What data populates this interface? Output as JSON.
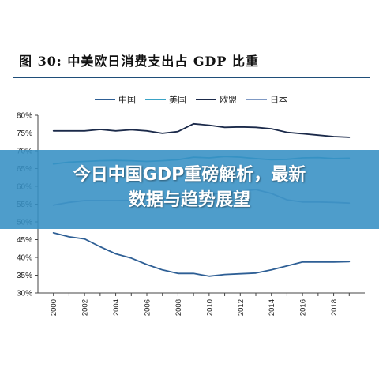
{
  "figure": {
    "title": "图 30: 中美欧日消费支出占 GDP 比重"
  },
  "overlay": {
    "line1": "今日中国GDP重磅解析，最新",
    "line2": "数据与趋势展望"
  },
  "colors": {
    "china": "#2e5f95",
    "usa": "#3aa3c6",
    "eu": "#1b2a4a",
    "japan": "#7f99c4",
    "axis": "#444444",
    "banner": "#368fc4",
    "title_rule": "#1f4e79"
  },
  "chart_data": {
    "type": "line",
    "x": [
      2000,
      2001,
      2002,
      2003,
      2004,
      2005,
      2006,
      2007,
      2008,
      2009,
      2010,
      2011,
      2012,
      2013,
      2014,
      2015,
      2016,
      2017,
      2018,
      2019
    ],
    "xticks": [
      "2000",
      "2002",
      "2004",
      "2006",
      "2008",
      "2010",
      "2012",
      "2014",
      "2016",
      "2018"
    ],
    "yticks": [
      "30%",
      "35%",
      "40%",
      "45%",
      "50%",
      "55%",
      "60%",
      "65%",
      "70%",
      "75%",
      "80%"
    ],
    "ylim": [
      30,
      80
    ],
    "legend_position": "top",
    "grid": false,
    "series": [
      {
        "name": "中国",
        "key": "china",
        "values": [
          46.9,
          45.8,
          45.2,
          43.0,
          41.0,
          39.8,
          38.0,
          36.5,
          35.5,
          35.5,
          34.7,
          35.2,
          35.4,
          35.6,
          36.5,
          37.6,
          38.7,
          38.7,
          38.7,
          38.8
        ]
      },
      {
        "name": "美国",
        "key": "usa",
        "values": [
          66.3,
          66.8,
          67.0,
          67.2,
          67.3,
          67.2,
          67.0,
          67.2,
          67.5,
          68.2,
          68.0,
          68.4,
          68.2,
          67.8,
          67.5,
          67.6,
          68.0,
          68.1,
          67.8,
          67.9
        ]
      },
      {
        "name": "欧盟",
        "key": "eu",
        "values": [
          75.6,
          75.6,
          75.6,
          76.0,
          75.6,
          75.9,
          75.6,
          74.9,
          75.4,
          77.6,
          77.2,
          76.6,
          76.7,
          76.6,
          76.2,
          75.2,
          74.8,
          74.4,
          74.0,
          73.8
        ]
      },
      {
        "name": "日本",
        "key": "japan",
        "values": [
          54.7,
          55.5,
          56.0,
          56.0,
          56.0,
          56.1,
          56.6,
          56.4,
          56.4,
          57.3,
          57.6,
          58.3,
          58.6,
          59.1,
          58.0,
          56.2,
          55.6,
          55.6,
          55.5,
          55.3
        ]
      }
    ]
  }
}
